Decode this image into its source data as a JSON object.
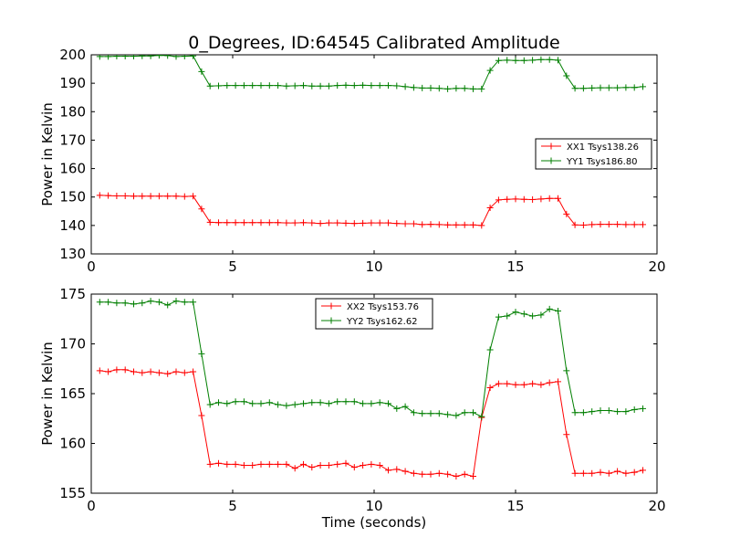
{
  "title": "0_Degrees, ID:64545 Calibrated Amplitude",
  "colors": {
    "xx": "#ff0000",
    "yy": "#007f00"
  },
  "chart_data": [
    {
      "type": "line",
      "ylabel": "Power in Kelvin",
      "xlabel": "",
      "xlim": [
        0,
        20
      ],
      "ylim": [
        130,
        200
      ],
      "xticks": [
        "0",
        "5",
        "10",
        "15",
        "20"
      ],
      "yticks": [
        "130",
        "140",
        "150",
        "160",
        "170",
        "180",
        "190",
        "200"
      ],
      "legend_position": "center-right",
      "x": [
        0.3,
        0.6,
        0.9,
        1.2,
        1.5,
        1.8,
        2.1,
        2.4,
        2.7,
        3.0,
        3.3,
        3.6,
        3.9,
        4.2,
        4.5,
        4.8,
        5.1,
        5.4,
        5.7,
        6.0,
        6.3,
        6.6,
        6.9,
        7.2,
        7.5,
        7.8,
        8.1,
        8.4,
        8.7,
        9.0,
        9.3,
        9.6,
        9.9,
        10.2,
        10.5,
        10.8,
        11.1,
        11.4,
        11.7,
        12.0,
        12.3,
        12.6,
        12.9,
        13.2,
        13.5,
        13.8,
        14.1,
        14.4,
        14.7,
        15.0,
        15.3,
        15.6,
        15.9,
        16.2,
        16.5,
        16.8,
        17.1,
        17.4,
        17.7,
        18.0,
        18.3,
        18.6,
        18.9,
        19.2,
        19.5
      ],
      "series": [
        {
          "name": "XX1 Tsys138.26",
          "color": "#ff0000",
          "values": [
            150.6,
            150.5,
            150.4,
            150.4,
            150.3,
            150.3,
            150.3,
            150.3,
            150.3,
            150.3,
            150.2,
            150.3,
            145.8,
            141.1,
            141.0,
            141.0,
            141.0,
            141.0,
            141.0,
            141.0,
            141.0,
            141.0,
            140.9,
            140.9,
            141.0,
            140.9,
            140.7,
            140.9,
            140.9,
            140.8,
            140.7,
            140.8,
            140.9,
            140.9,
            140.9,
            140.7,
            140.6,
            140.6,
            140.3,
            140.4,
            140.3,
            140.2,
            140.2,
            140.2,
            140.2,
            140.0,
            146.2,
            149.0,
            149.2,
            149.3,
            149.2,
            149.1,
            149.3,
            149.5,
            149.5,
            144.0,
            140.2,
            140.1,
            140.3,
            140.4,
            140.4,
            140.4,
            140.3,
            140.3,
            140.3
          ]
        },
        {
          "name": "YY1 Tsys186.80",
          "color": "#007f00",
          "values": [
            199.4,
            199.4,
            199.5,
            199.5,
            199.5,
            199.6,
            199.6,
            199.8,
            199.7,
            199.4,
            199.5,
            199.6,
            194.1,
            189.0,
            189.1,
            189.2,
            189.2,
            189.2,
            189.2,
            189.2,
            189.2,
            189.2,
            189.0,
            189.1,
            189.2,
            189.0,
            189.0,
            189.0,
            189.2,
            189.3,
            189.2,
            189.3,
            189.2,
            189.2,
            189.2,
            189.1,
            188.8,
            188.5,
            188.3,
            188.3,
            188.2,
            188.0,
            188.2,
            188.2,
            188.0,
            188.0,
            194.5,
            198.0,
            198.1,
            198.0,
            198.0,
            198.1,
            198.3,
            198.3,
            198.1,
            192.6,
            188.2,
            188.2,
            188.3,
            188.4,
            188.4,
            188.4,
            188.5,
            188.5,
            188.8
          ]
        }
      ]
    },
    {
      "type": "line",
      "ylabel": "Power in Kelvin",
      "xlabel": "Time (seconds)",
      "xlim": [
        0,
        20
      ],
      "ylim": [
        155,
        175
      ],
      "xticks": [
        "0",
        "5",
        "10",
        "15",
        "20"
      ],
      "yticks": [
        "155",
        "160",
        "165",
        "170",
        "175"
      ],
      "legend_position": "upper-center",
      "x": [
        0.3,
        0.6,
        0.9,
        1.2,
        1.5,
        1.8,
        2.1,
        2.4,
        2.7,
        3.0,
        3.3,
        3.6,
        3.9,
        4.2,
        4.5,
        4.8,
        5.1,
        5.4,
        5.7,
        6.0,
        6.3,
        6.6,
        6.9,
        7.2,
        7.5,
        7.8,
        8.1,
        8.4,
        8.7,
        9.0,
        9.3,
        9.6,
        9.9,
        10.2,
        10.5,
        10.8,
        11.1,
        11.4,
        11.7,
        12.0,
        12.3,
        12.6,
        12.9,
        13.2,
        13.5,
        13.8,
        14.1,
        14.4,
        14.7,
        15.0,
        15.3,
        15.6,
        15.9,
        16.2,
        16.5,
        16.8,
        17.1,
        17.4,
        17.7,
        18.0,
        18.3,
        18.6,
        18.9,
        19.2,
        19.5
      ],
      "series": [
        {
          "name": "XX2 Tsys153.76",
          "color": "#ff0000",
          "values": [
            167.3,
            167.2,
            167.4,
            167.4,
            167.2,
            167.1,
            167.2,
            167.1,
            167.0,
            167.2,
            167.1,
            167.2,
            162.8,
            157.9,
            158.0,
            157.9,
            157.9,
            157.8,
            157.8,
            157.9,
            157.9,
            157.9,
            157.9,
            157.5,
            157.9,
            157.6,
            157.8,
            157.8,
            157.9,
            158.0,
            157.6,
            157.8,
            157.9,
            157.8,
            157.3,
            157.4,
            157.2,
            157.0,
            156.9,
            156.9,
            157.0,
            156.9,
            156.7,
            156.9,
            156.7,
            162.6,
            165.6,
            166.0,
            166.0,
            165.9,
            165.9,
            166.0,
            165.9,
            166.1,
            166.2,
            160.9,
            157.0,
            157.0,
            157.0,
            157.1,
            157.0,
            157.2,
            157.0,
            157.1,
            157.3
          ]
        },
        {
          "name": "YY2 Tsys162.62",
          "color": "#007f00",
          "values": [
            174.2,
            174.2,
            174.1,
            174.1,
            174.0,
            174.1,
            174.3,
            174.2,
            173.9,
            174.3,
            174.2,
            174.2,
            169.0,
            163.9,
            164.1,
            164.0,
            164.2,
            164.2,
            164.0,
            164.0,
            164.1,
            163.9,
            163.8,
            163.9,
            164.0,
            164.1,
            164.1,
            164.0,
            164.2,
            164.2,
            164.2,
            164.0,
            164.0,
            164.1,
            164.0,
            163.5,
            163.7,
            163.1,
            163.0,
            163.0,
            163.0,
            162.9,
            162.8,
            163.1,
            163.1,
            162.7,
            169.4,
            172.7,
            172.8,
            173.2,
            173.0,
            172.8,
            172.9,
            173.5,
            173.3,
            167.3,
            163.1,
            163.1,
            163.2,
            163.3,
            163.3,
            163.2,
            163.2,
            163.4,
            163.5
          ]
        }
      ]
    }
  ]
}
